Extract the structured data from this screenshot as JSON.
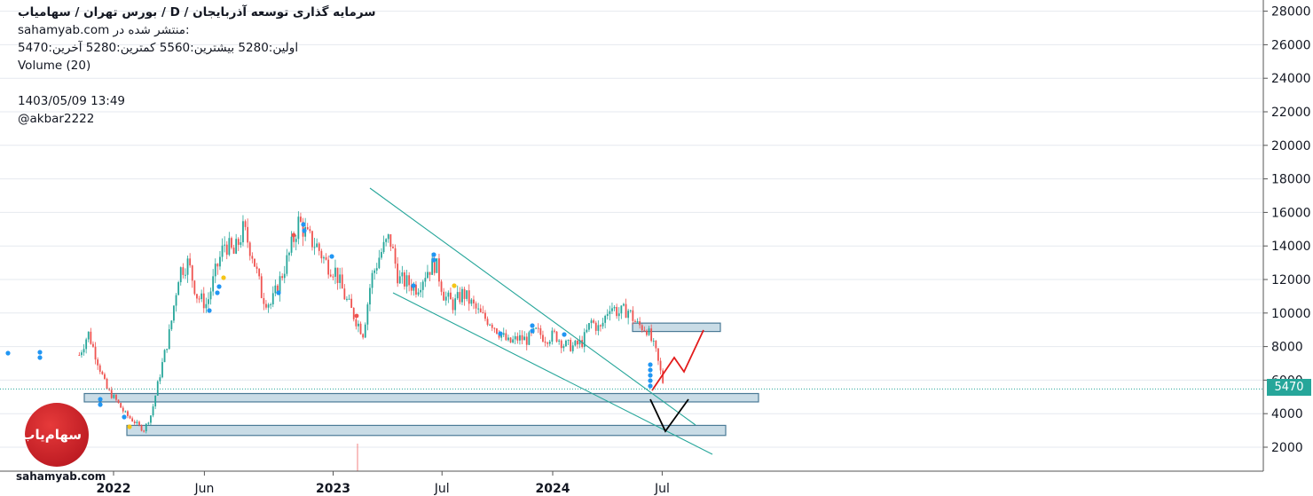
{
  "header": {
    "title": "سرمایه گذاری توسعه آذربایجان  /  D  /  بورس تهران / سهامیاب",
    "published": "sahamyab.com منتشر شده در:",
    "ohlc": "اولین:5280  بیشترین:5560  کمترین:5280  آخرین:5470",
    "volume": "Volume (20)",
    "datetime": "1403/05/09 13:49",
    "user": "@akbar2222"
  },
  "logo": {
    "url": "sahamyab.com",
    "icon": "sahamyab-logo-icon"
  },
  "colors": {
    "up": "#26a69a",
    "down": "#ef5350",
    "accent": "#26a69a",
    "zone_fill": "#c9dce6",
    "zone_stroke": "#4a7a96",
    "projection_red": "#e31b1b",
    "projection_black": "#000000",
    "signal_blue": "#2196f3",
    "signal_yellow": "#f5c518"
  },
  "chart_data": {
    "type": "line",
    "title": "",
    "xlabel": "",
    "ylabel": "",
    "ylim": [
      0,
      28000
    ],
    "grid": "horizontal",
    "y_ticks": [
      2000,
      4000,
      6000,
      8000,
      10000,
      12000,
      14000,
      16000,
      18000,
      20000,
      22000,
      24000,
      26000,
      28000
    ],
    "x_ticks": [
      "2022",
      "Jun",
      "2023",
      "Jul",
      "2024",
      "Jul"
    ],
    "last_price": 5470,
    "last_price_label": "5470",
    "series": [
      {
        "x": [
          "2021-11-05",
          "2021-11-20",
          "2021-12-05",
          "2021-12-20",
          "2022-01-05",
          "2022-01-20",
          "2022-02-05",
          "2022-02-20",
          "2022-03-05",
          "2022-03-20",
          "2022-04-05",
          "2022-04-20",
          "2022-05-05",
          "2022-05-20",
          "2022-06-05",
          "2022-06-20",
          "2022-07-05",
          "2022-07-20",
          "2022-08-05",
          "2022-08-20",
          "2022-09-05",
          "2022-09-20",
          "2022-10-05",
          "2022-10-20",
          "2022-11-05",
          "2022-11-20",
          "2022-12-05",
          "2022-12-20",
          "2023-01-05",
          "2023-01-20",
          "2023-02-05",
          "2023-02-20",
          "2023-03-05",
          "2023-03-20",
          "2023-04-05",
          "2023-04-20",
          "2023-05-05",
          "2023-05-20",
          "2023-06-05",
          "2023-06-20",
          "2023-07-05",
          "2023-07-20",
          "2023-08-05",
          "2023-08-20",
          "2023-09-05",
          "2023-09-20",
          "2023-10-05",
          "2023-10-20",
          "2023-11-05",
          "2023-11-20",
          "2023-12-05",
          "2023-12-20",
          "2024-01-05",
          "2024-01-20",
          "2024-02-05",
          "2024-02-20",
          "2024-03-05",
          "2024-03-20",
          "2024-04-05",
          "2024-04-20",
          "2024-05-05",
          "2024-05-20",
          "2024-06-05",
          "2024-06-20",
          "2024-07-05"
        ],
        "values": [
          7500,
          8800,
          7200,
          5500,
          4800,
          4000,
          3500,
          3000,
          4000,
          6500,
          9000,
          12500,
          13000,
          11000,
          10500,
          12500,
          14200,
          13500,
          15000,
          13500,
          11000,
          10500,
          12000,
          13500,
          15500,
          14500,
          14000,
          13000,
          12500,
          11000,
          9800,
          8800,
          12000,
          13500,
          14500,
          12000,
          11800,
          11500,
          12500,
          13000,
          11000,
          10500,
          11200,
          10500,
          9800,
          9500,
          8800,
          8200,
          8500,
          8400,
          8900,
          8500,
          8700,
          8100,
          8000,
          8300,
          9500,
          9000,
          10500,
          10000,
          10200,
          9300,
          9100,
          7700,
          5470
        ]
      }
    ],
    "annotations": {
      "support_zones": [
        {
          "from": 4700,
          "to": 5200
        },
        {
          "from": 2700,
          "to": 3300
        }
      ],
      "resistance_zone": {
        "from": 8900,
        "to": 9400
      }
    }
  }
}
